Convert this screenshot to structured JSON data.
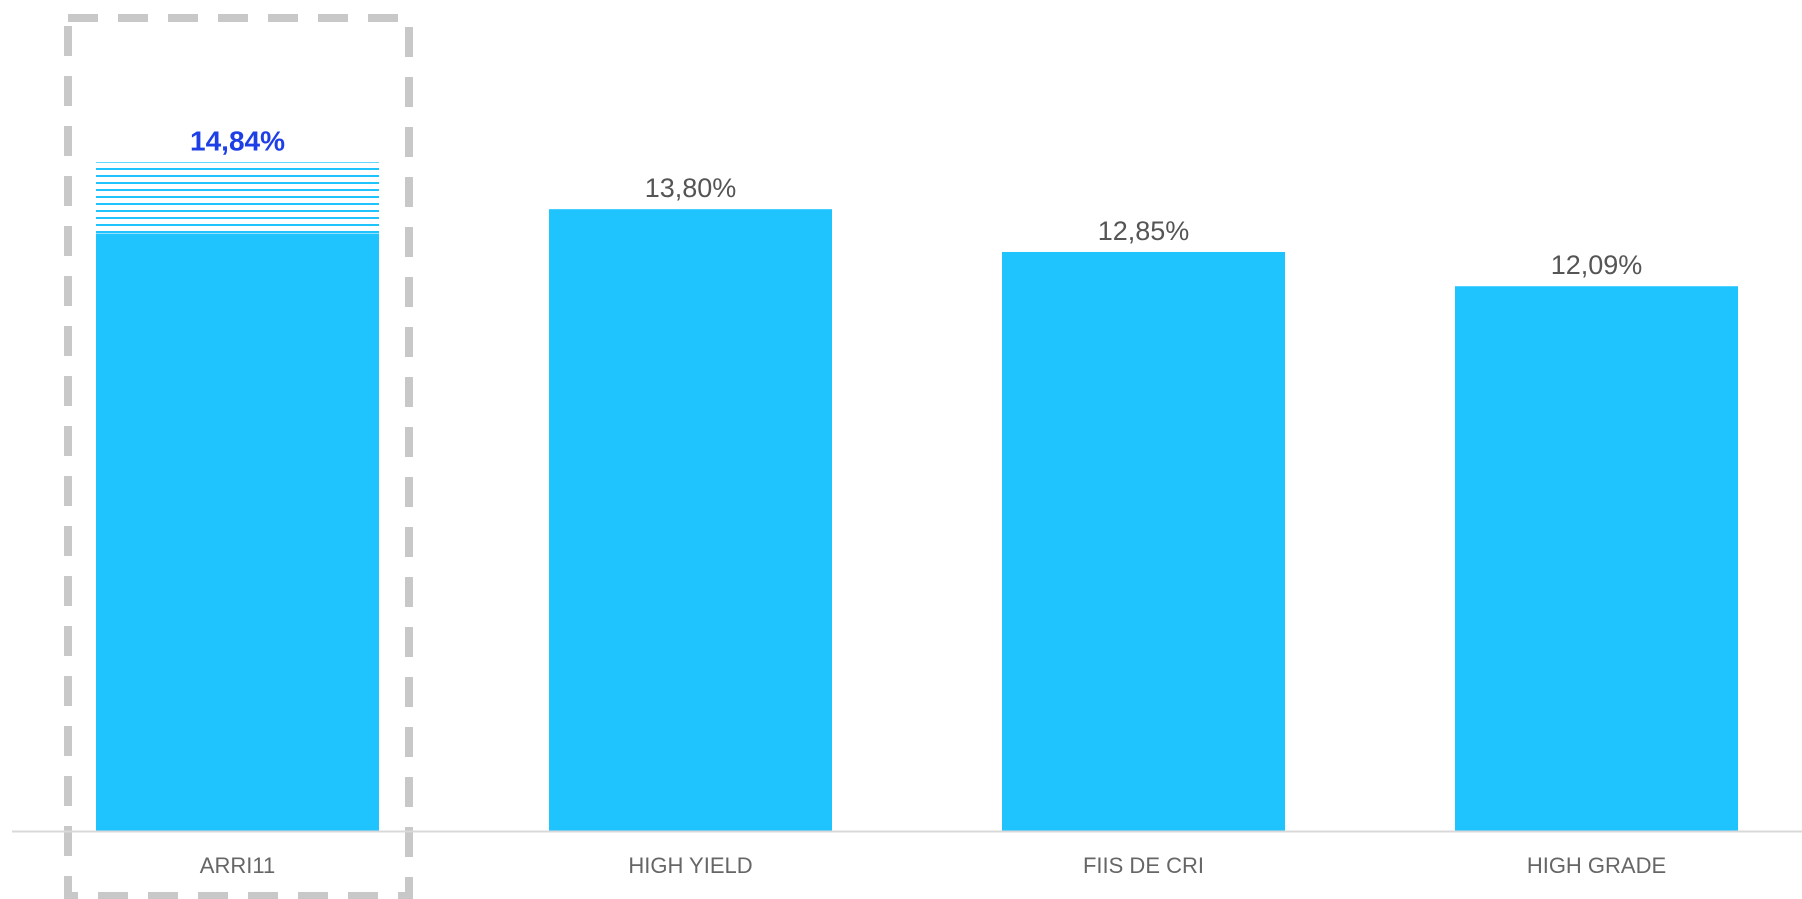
{
  "chart_data": {
    "type": "bar",
    "categories": [
      "ARRI11",
      "HIGH YIELD",
      "FIIS DE CRI",
      "HIGH GRADE"
    ],
    "values": [
      14.84,
      13.8,
      12.85,
      12.09
    ],
    "value_labels": [
      "14,84%",
      "13,80%",
      "12,85%",
      "12,09%"
    ],
    "highlight_index": 0,
    "highlight_striped_extra": 1.58,
    "title": "",
    "xlabel": "",
    "ylabel": "",
    "ylim": [
      0,
      16.6
    ],
    "grid": false,
    "colors": {
      "bar": "#1FC4FF",
      "highlight_label": "#1E3FE6",
      "label": "#555555",
      "category": "#666666",
      "axis": "#D9D9D9",
      "highlight_box": "#C8C8C8"
    }
  }
}
